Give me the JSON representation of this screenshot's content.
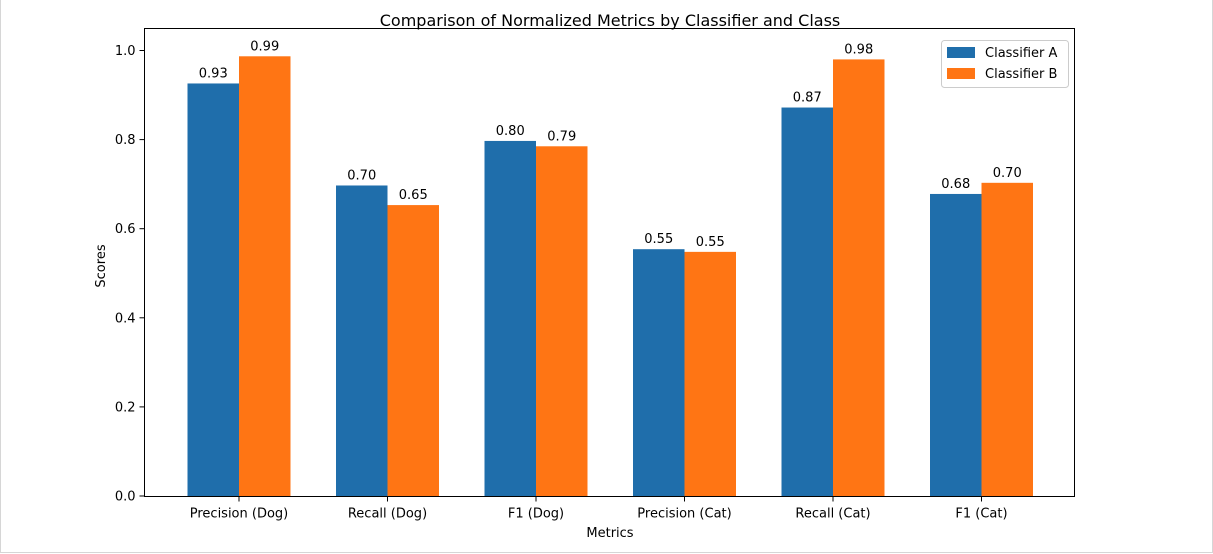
{
  "chart_data": {
    "type": "bar",
    "title": "Comparison of Normalized Metrics by Classifier and Class",
    "xlabel": "Metrics",
    "ylabel": "Scores",
    "categories": [
      "Precision (Dog)",
      "Recall (Dog)",
      "F1 (Dog)",
      "Precision (Cat)",
      "Recall (Cat)",
      "F1 (Cat)"
    ],
    "series": [
      {
        "name": "Classifier A",
        "color": "#1f6eab",
        "values": [
          0.926,
          0.697,
          0.797,
          0.554,
          0.872,
          0.678
        ],
        "labels": [
          "0.93",
          "0.70",
          "0.80",
          "0.55",
          "0.87",
          "0.68"
        ]
      },
      {
        "name": "Classifier B",
        "color": "#ff7514",
        "values": [
          0.987,
          0.653,
          0.785,
          0.548,
          0.98,
          0.703
        ],
        "labels": [
          "0.99",
          "0.65",
          "0.79",
          "0.55",
          "0.98",
          "0.70"
        ]
      }
    ],
    "ylim": [
      0.0,
      1.0
    ],
    "yticks": [
      "0.0",
      "0.2",
      "0.4",
      "0.6",
      "0.8",
      "1.0"
    ],
    "legend_position": "top-right",
    "grid": false
  }
}
